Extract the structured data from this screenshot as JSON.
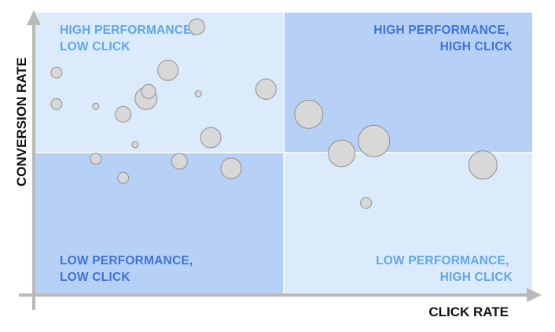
{
  "chart_data": {
    "type": "scatter",
    "title": "",
    "xlabel": "CLICK RATE",
    "ylabel": "CONVERSION RATE",
    "xlim": [
      0,
      100
    ],
    "ylim": [
      0,
      100
    ],
    "grid": false,
    "quadrants": [
      {
        "position": "top-left",
        "lines": [
          "HIGH PERFORMANCE,",
          "LOW CLICK"
        ],
        "fill": "#dcebfb",
        "text_color": "#5fa7ec"
      },
      {
        "position": "top-right",
        "lines": [
          "HIGH PERFORMANCE,",
          "HIGH CLICK"
        ],
        "fill": "#b7d1f6",
        "text_color": "#3f72d9"
      },
      {
        "position": "bottom-left",
        "lines": [
          "LOW PERFORMANCE,",
          "LOW CLICK"
        ],
        "fill": "#b7d1f6",
        "text_color": "#3f72d9"
      },
      {
        "position": "bottom-right",
        "lines": [
          "LOW PERFORMANCE,",
          "HIGH CLICK"
        ],
        "fill": "#dcebfb",
        "text_color": "#5fa7ec"
      }
    ],
    "points": [
      {
        "x": 4.4,
        "y": 78.7,
        "size": 7
      },
      {
        "x": 4.4,
        "y": 67.5,
        "size": 7
      },
      {
        "x": 12.3,
        "y": 66.7,
        "size": 4
      },
      {
        "x": 17.8,
        "y": 63.9,
        "size": 10
      },
      {
        "x": 22.4,
        "y": 69.5,
        "size": 14
      },
      {
        "x": 22.9,
        "y": 72.0,
        "size": 9
      },
      {
        "x": 26.8,
        "y": 79.5,
        "size": 13
      },
      {
        "x": 32.9,
        "y": 71.2,
        "size": 4
      },
      {
        "x": 32.6,
        "y": 95.0,
        "size": 10
      },
      {
        "x": 46.5,
        "y": 72.8,
        "size": 13
      },
      {
        "x": 20.2,
        "y": 53.1,
        "size": 4
      },
      {
        "x": 35.4,
        "y": 55.6,
        "size": 13
      },
      {
        "x": 12.3,
        "y": 48.1,
        "size": 7
      },
      {
        "x": 29.1,
        "y": 47.2,
        "size": 10
      },
      {
        "x": 39.5,
        "y": 44.7,
        "size": 13
      },
      {
        "x": 17.8,
        "y": 41.3,
        "size": 7
      },
      {
        "x": 55.1,
        "y": 63.9,
        "size": 18
      },
      {
        "x": 61.7,
        "y": 50.0,
        "size": 17
      },
      {
        "x": 68.2,
        "y": 54.4,
        "size": 20
      },
      {
        "x": 90.1,
        "y": 45.9,
        "size": 18
      },
      {
        "x": 66.6,
        "y": 32.4,
        "size": 7
      }
    ]
  }
}
